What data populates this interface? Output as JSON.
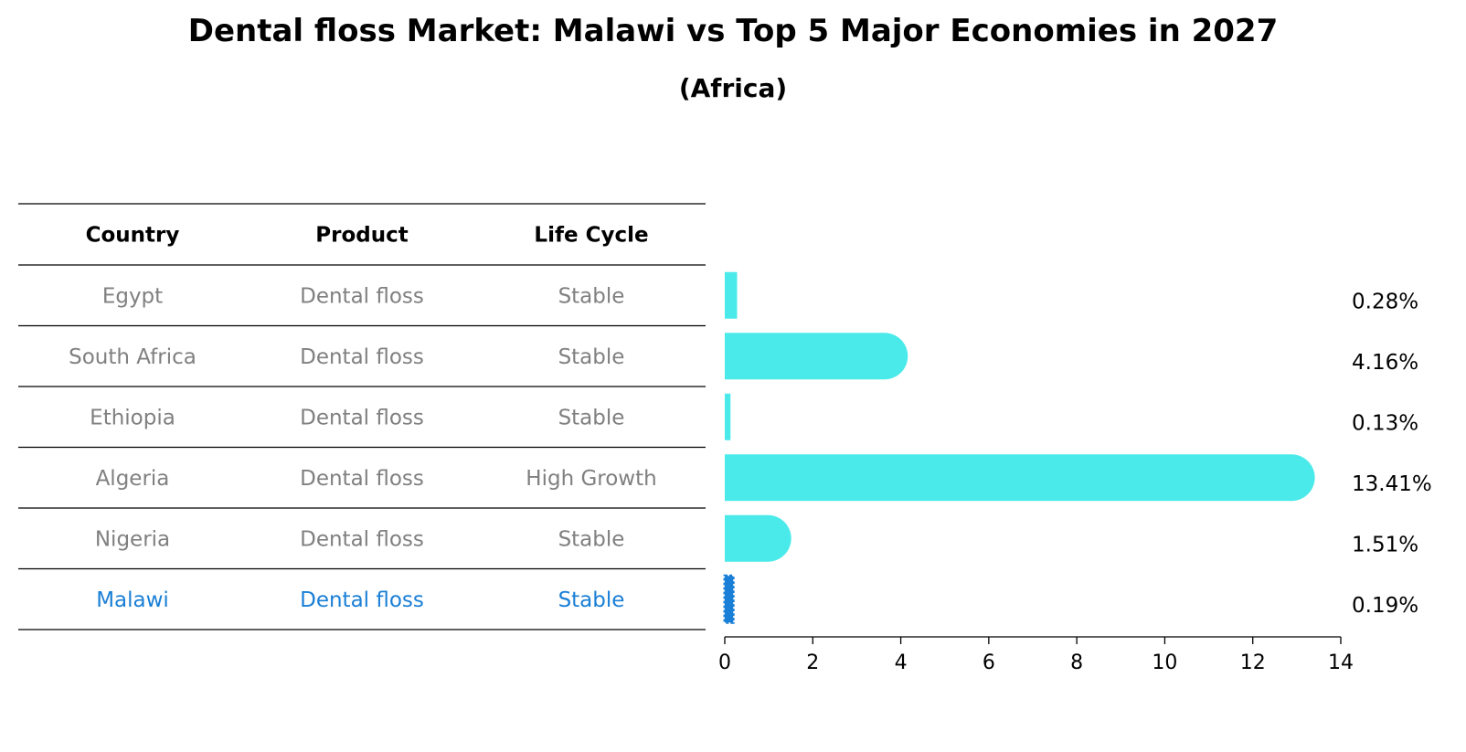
{
  "title": "Dental floss Market: Malawi vs Top 5 Major Economies in 2027",
  "subtitle": "(Africa)",
  "table": {
    "headers": [
      "Country",
      "Product",
      "Life Cycle"
    ],
    "rows": [
      {
        "country": "Egypt",
        "product": "Dental floss",
        "life_cycle": "Stable",
        "highlight": false
      },
      {
        "country": "South Africa",
        "product": "Dental floss",
        "life_cycle": "Stable",
        "highlight": false
      },
      {
        "country": "Ethiopia",
        "product": "Dental floss",
        "life_cycle": "Stable",
        "highlight": false
      },
      {
        "country": "Algeria",
        "product": "Dental floss",
        "life_cycle": "High Growth",
        "highlight": false
      },
      {
        "country": "Nigeria",
        "product": "Dental floss",
        "life_cycle": "Stable",
        "highlight": false
      },
      {
        "country": "Malawi",
        "product": "Dental floss",
        "life_cycle": "Stable",
        "highlight": true
      }
    ]
  },
  "colors": {
    "bar": "#4aeaea",
    "highlight": "#1a7fd6",
    "muted_text": "#808080",
    "line": "#000000"
  },
  "chart_data": {
    "type": "bar",
    "orientation": "horizontal",
    "categories": [
      "Egypt",
      "South Africa",
      "Ethiopia",
      "Algeria",
      "Nigeria",
      "Malawi"
    ],
    "values": [
      0.28,
      4.16,
      0.13,
      13.41,
      1.51,
      0.19
    ],
    "value_labels": [
      "0.28%",
      "4.16%",
      "0.13%",
      "13.41%",
      "1.51%",
      "0.19%"
    ],
    "xlim": [
      0,
      14
    ],
    "xticks": [
      0,
      2,
      4,
      6,
      8,
      10,
      12,
      14
    ],
    "highlight_category": "Malawi",
    "grid": false
  }
}
